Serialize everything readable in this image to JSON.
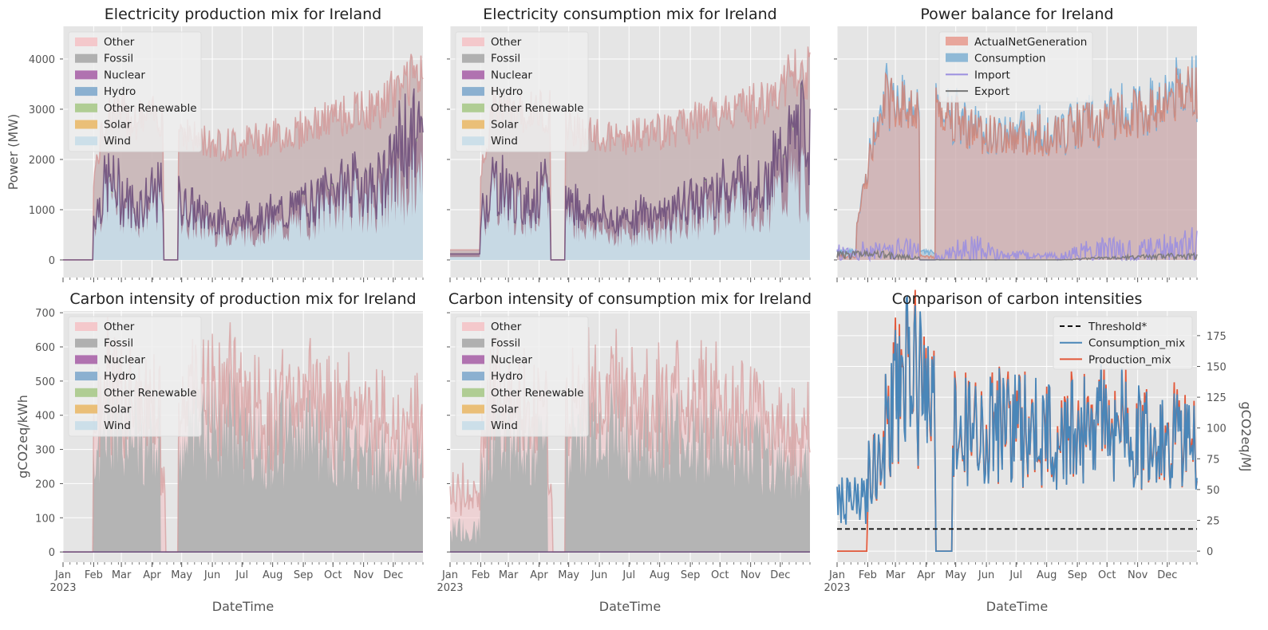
{
  "figure": {
    "xlabel": "DateTime",
    "months": [
      "Jan",
      "Feb",
      "Mar",
      "Apr",
      "May",
      "Jun",
      "Jul",
      "Aug",
      "Sep",
      "Oct",
      "Nov",
      "Dec"
    ],
    "year_label": "2023",
    "mix_categories": [
      "Other",
      "Fossil",
      "Nuclear",
      "Hydro",
      "Other Renewable",
      "Solar",
      "Wind"
    ],
    "mix_colors": {
      "Other": "#f4c3c6",
      "Fossil": "#a9a9a9",
      "Nuclear": "#a864a8",
      "Hydro": "#7fa9cc",
      "Other Renewable": "#a9c98a",
      "Solar": "#e9b96a",
      "Wind": "#c8dde8"
    },
    "colors": {
      "axes_bg": "#e5e5e5",
      "grid": "#ffffff",
      "other_line": "#d49a9a",
      "nuclear_line": "#6b4a7a",
      "fossil_edge": "#9a9a9a",
      "actual": "#e8a69c",
      "consumption": "#8fb9d6",
      "import": "#9b8fe0",
      "export": "#777777",
      "cons_mix": "#4a86b8",
      "prod_mix": "#e2583a"
    }
  },
  "chart_data": [
    {
      "type": "area",
      "title": "Electricity production mix for Ireland",
      "ylabel": "Power (MW)",
      "ylim": [
        -350,
        4650
      ],
      "yticks": [
        0,
        1000,
        2000,
        3000,
        4000
      ],
      "x_domain": [
        "2023-01-01",
        "2023-12-31"
      ],
      "legend_position": "top-left",
      "series": [
        {
          "name": "Wind",
          "values": {
            "Jan": 0,
            "Feb": 1400,
            "Mar": 900,
            "Apr": 1200,
            "May": 700,
            "Jun": 500,
            "Jul": 550,
            "Aug": 650,
            "Sep": 900,
            "Oct": 1200,
            "Nov": 1100,
            "Dec": 1500
          }
        },
        {
          "name": "Nuclear",
          "values": {
            "Jan": 0,
            "Feb": 1500,
            "Mar": 1000,
            "Apr": 1350,
            "May": 900,
            "Jun": 700,
            "Jul": 800,
            "Aug": 900,
            "Sep": 1200,
            "Oct": 1500,
            "Nov": 1400,
            "Dec": 2400
          }
        },
        {
          "name": "Other",
          "values": {
            "Jan": 0,
            "Feb": 3000,
            "Mar": 2800,
            "Apr": 2900,
            "May": 2400,
            "Jun": 2300,
            "Jul": 2400,
            "Aug": 2500,
            "Sep": 2700,
            "Oct": 2900,
            "Nov": 3000,
            "Dec": 3600
          }
        }
      ]
    },
    {
      "type": "area",
      "title": "Electricity consumption mix for Ireland",
      "ylim": [
        -350,
        4650
      ],
      "x_domain": [
        "2023-01-01",
        "2023-12-31"
      ],
      "legend_position": "top-left",
      "series": [
        {
          "name": "Wind",
          "values": {
            "Jan": 0,
            "Feb": 1400,
            "Mar": 900,
            "Apr": 1200,
            "May": 700,
            "Jun": 500,
            "Jul": 550,
            "Aug": 650,
            "Sep": 900,
            "Oct": 1200,
            "Nov": 1100,
            "Dec": 1500
          }
        },
        {
          "name": "Nuclear",
          "values": {
            "Jan": 0,
            "Feb": 1550,
            "Mar": 1050,
            "Apr": 1400,
            "May": 950,
            "Jun": 750,
            "Jul": 850,
            "Aug": 950,
            "Sep": 1250,
            "Oct": 1550,
            "Nov": 1450,
            "Dec": 2450
          }
        },
        {
          "name": "Other",
          "values": {
            "Jan": 200,
            "Feb": 3100,
            "Mar": 2900,
            "Apr": 3000,
            "May": 2500,
            "Jun": 2400,
            "Jul": 2500,
            "Aug": 2600,
            "Sep": 2800,
            "Oct": 3000,
            "Nov": 3100,
            "Dec": 3700
          }
        }
      ]
    },
    {
      "type": "area",
      "title": "Power balance for Ireland",
      "ylim": [
        -350,
        4650
      ],
      "x_domain": [
        "2023-01-01",
        "2023-12-31"
      ],
      "legend_position": "top-center",
      "series": [
        {
          "name": "ActualNetGeneration",
          "values": {
            "Jan": 50,
            "Feb": 3200,
            "Mar": 3000,
            "Apr": 3000,
            "May": 2600,
            "Jun": 2400,
            "Jul": 2450,
            "Aug": 2550,
            "Sep": 2700,
            "Oct": 2850,
            "Nov": 2900,
            "Dec": 3400
          }
        },
        {
          "name": "Consumption",
          "values": {
            "Jan": 100,
            "Feb": 3300,
            "Mar": 3100,
            "Apr": 3100,
            "May": 2700,
            "Jun": 2500,
            "Jul": 2550,
            "Aug": 2650,
            "Sep": 2800,
            "Oct": 2950,
            "Nov": 3000,
            "Dec": 3500
          }
        },
        {
          "name": "Import",
          "values": {
            "Jan": 150,
            "Feb": 200,
            "Mar": 200,
            "Apr": 50,
            "May": 300,
            "Jun": 100,
            "Jul": 80,
            "Aug": 60,
            "Sep": 200,
            "Oct": 250,
            "Nov": 200,
            "Dec": 300
          }
        },
        {
          "name": "Export",
          "values": {
            "Jan": 100,
            "Feb": 100,
            "Mar": 50,
            "Apr": 0,
            "May": 0,
            "Jun": 0,
            "Jul": 0,
            "Aug": 0,
            "Sep": 30,
            "Oct": 50,
            "Nov": 60,
            "Dec": 80
          }
        }
      ]
    },
    {
      "type": "area",
      "title": "Carbon intensity of production mix for Ireland",
      "ylabel": "gCO2eq/kWh",
      "ylim": [
        -30,
        705
      ],
      "yticks": [
        0,
        100,
        200,
        300,
        400,
        500,
        600,
        700
      ],
      "x_domain": [
        "2023-01-01",
        "2023-12-31"
      ],
      "legend_position": "top-left",
      "series": [
        {
          "name": "Fossil",
          "values": {
            "Jan": 0,
            "Feb": 380,
            "Mar": 330,
            "Apr": 300,
            "May": 350,
            "Jun": 380,
            "Jul": 320,
            "Aug": 330,
            "Sep": 350,
            "Oct": 300,
            "Nov": 280,
            "Dec": 260
          }
        },
        {
          "name": "Other",
          "values": {
            "Jan": 0,
            "Feb": 450,
            "Mar": 420,
            "Apr": 380,
            "May": 450,
            "Jun": 480,
            "Jul": 420,
            "Aug": 430,
            "Sep": 460,
            "Oct": 400,
            "Nov": 380,
            "Dec": 350
          }
        }
      ]
    },
    {
      "type": "area",
      "title": "Carbon intensity of consumption mix for Ireland",
      "ylim": [
        -30,
        705
      ],
      "x_domain": [
        "2023-01-01",
        "2023-12-31"
      ],
      "legend_position": "top-left",
      "series": [
        {
          "name": "Fossil",
          "values": {
            "Jan": 60,
            "Feb": 380,
            "Mar": 330,
            "Apr": 300,
            "May": 350,
            "Jun": 380,
            "Jul": 320,
            "Aug": 330,
            "Sep": 350,
            "Oct": 300,
            "Nov": 280,
            "Dec": 260
          }
        },
        {
          "name": "Other",
          "values": {
            "Jan": 100,
            "Feb": 450,
            "Mar": 420,
            "Apr": 380,
            "May": 450,
            "Jun": 480,
            "Jul": 420,
            "Aug": 430,
            "Sep": 460,
            "Oct": 400,
            "Nov": 380,
            "Dec": 350
          }
        }
      ]
    },
    {
      "type": "line",
      "title": "Comparison of carbon intensities",
      "ylabel_right": "gCO2eq/MJ",
      "ylim": [
        -9,
        195
      ],
      "yticks": [
        0,
        25,
        50,
        75,
        100,
        125,
        150,
        175
      ],
      "threshold": 18,
      "x_domain": [
        "2023-01-01",
        "2023-12-31"
      ],
      "legend_position": "top-right",
      "series": [
        {
          "name": "Threshold*",
          "style": "dashed",
          "values": {
            "Jan": 18,
            "Dec": 18
          }
        },
        {
          "name": "Consumption_mix",
          "values": {
            "Jan": 30,
            "Feb": 90,
            "Mar": 150,
            "Apr": 100,
            "May": 95,
            "Jun": 105,
            "Jul": 95,
            "Aug": 90,
            "Sep": 110,
            "Oct": 100,
            "Nov": 90,
            "Dec": 85
          }
        },
        {
          "name": "Production_mix",
          "values": {
            "Jan": 0,
            "Feb": 90,
            "Mar": 160,
            "Apr": 100,
            "May": 95,
            "Jun": 110,
            "Jul": 95,
            "Aug": 90,
            "Sep": 115,
            "Oct": 105,
            "Nov": 95,
            "Dec": 90
          }
        }
      ]
    }
  ]
}
